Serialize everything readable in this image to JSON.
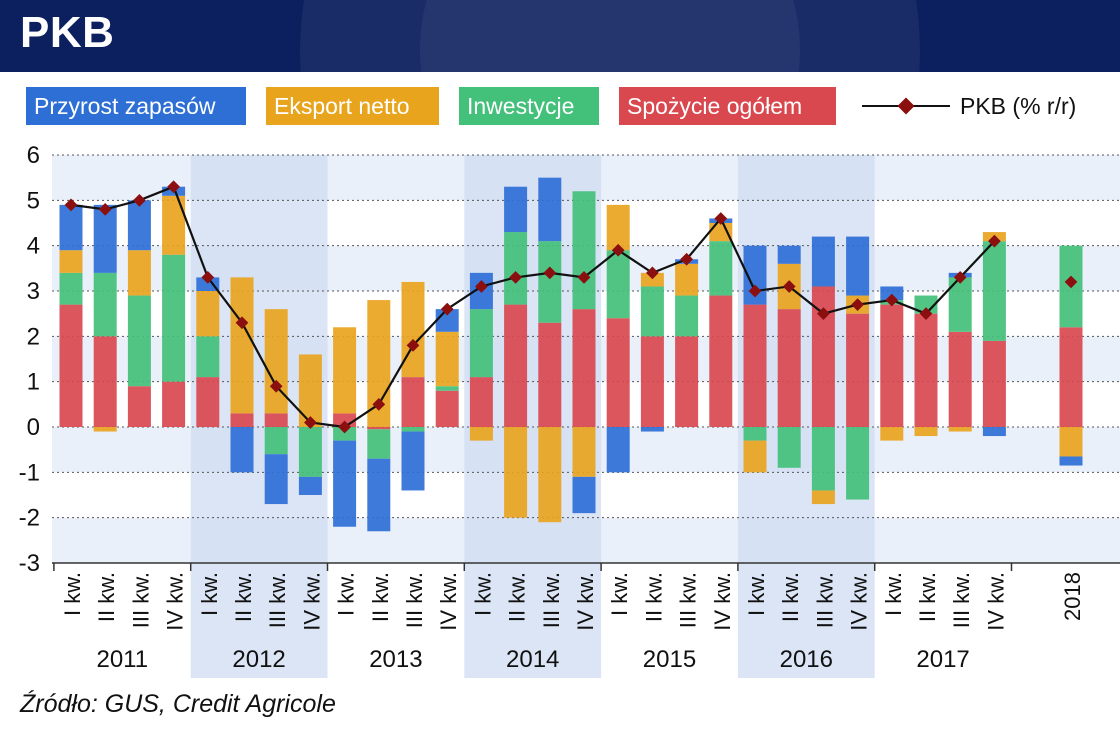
{
  "header": {
    "title": "PKB",
    "bg_color": "#0c1f5e"
  },
  "source": "Źródło: GUS, Credit Agricole",
  "legend": {
    "items": [
      {
        "key": "przyrost",
        "label": "Przyrost zapasów",
        "color": "#2e6fd6"
      },
      {
        "key": "eksport",
        "label": "Eksport netto",
        "color": "#e9a41e"
      },
      {
        "key": "inwestycje",
        "label": "Inwestycje",
        "color": "#43c07a"
      },
      {
        "key": "spozycie",
        "label": "Spożycie ogółem",
        "color": "#d9484f"
      }
    ],
    "line_label": "PKB (% r/r)"
  },
  "chart_data": {
    "type": "bar",
    "stacked": true,
    "y_axis": {
      "min": -3,
      "max": 6,
      "ticks": [
        "-3",
        "-2",
        "-1",
        "0",
        "1",
        "2",
        "3",
        "4",
        "5",
        "6"
      ]
    },
    "grid": true,
    "categories": [
      "I kw.",
      "II kw.",
      "III kw.",
      "IV kw.",
      "I kw.",
      "II kw.",
      "III kw.",
      "IV kw.",
      "I kw.",
      "II kw.",
      "III kw.",
      "IV kw.",
      "I kw.",
      "II kw.",
      "III kw.",
      "IV kw.",
      "I kw.",
      "II kw.",
      "III kw.",
      "IV kw.",
      "I kw.",
      "II kw.",
      "III kw.",
      "IV kw.",
      "I kw.",
      "II kw.",
      "III kw.",
      "IV kw.",
      "2018"
    ],
    "year_groups": [
      {
        "label": "2011",
        "shaded": false
      },
      {
        "label": "2012",
        "shaded": true
      },
      {
        "label": "2013",
        "shaded": false
      },
      {
        "label": "2014",
        "shaded": true
      },
      {
        "label": "2015",
        "shaded": false
      },
      {
        "label": "2016",
        "shaded": true
      },
      {
        "label": "2017",
        "shaded": false
      }
    ],
    "series": [
      {
        "name": "Spożycie ogółem",
        "color": "#d9484f",
        "values": [
          2.7,
          2.0,
          0.9,
          1.0,
          1.1,
          0.3,
          0.3,
          0.0,
          0.3,
          -0.05,
          1.1,
          0.8,
          1.1,
          2.7,
          2.3,
          2.6,
          2.4,
          2.0,
          2.0,
          2.9,
          2.7,
          2.6,
          3.1,
          2.5,
          2.7,
          2.5,
          2.1,
          1.9,
          2.2
        ]
      },
      {
        "name": "Inwestycje",
        "color": "#43c07a",
        "values": [
          0.7,
          1.4,
          2.0,
          2.8,
          0.9,
          0.0,
          -0.6,
          -1.1,
          -0.3,
          -0.65,
          -0.1,
          0.1,
          1.5,
          1.6,
          1.8,
          2.6,
          1.5,
          1.1,
          0.9,
          1.2,
          -0.3,
          -0.9,
          -1.4,
          -1.6,
          0.1,
          0.4,
          1.2,
          2.2,
          1.8
        ]
      },
      {
        "name": "Eksport netto",
        "color": "#e9a41e",
        "values": [
          0.5,
          -0.1,
          1.0,
          1.3,
          1.0,
          3.0,
          2.3,
          1.6,
          1.9,
          2.8,
          2.1,
          1.2,
          -0.3,
          -2.0,
          -2.1,
          -1.1,
          1.0,
          0.3,
          0.7,
          0.4,
          -0.7,
          1.0,
          -0.3,
          0.4,
          -0.3,
          -0.2,
          -0.1,
          0.2,
          -0.65
        ]
      },
      {
        "name": "Przyrost zapasów",
        "color": "#2e6fd6",
        "values": [
          1.0,
          1.5,
          1.1,
          0.2,
          0.3,
          -1.0,
          -1.1,
          -0.4,
          -1.9,
          -1.6,
          -1.3,
          0.5,
          0.8,
          1.0,
          1.4,
          -0.8,
          -1.0,
          -0.1,
          0.1,
          0.1,
          1.3,
          0.4,
          1.1,
          1.3,
          0.3,
          0.0,
          0.1,
          -0.2,
          -0.2
        ]
      }
    ],
    "line": {
      "name": "PKB (% r/r)",
      "color": "#111111",
      "marker_color": "#8b0f0f",
      "values": [
        4.9,
        4.8,
        5.0,
        5.3,
        3.3,
        2.3,
        0.9,
        0.1,
        0.0,
        0.5,
        1.8,
        2.6,
        3.1,
        3.3,
        3.4,
        3.3,
        3.9,
        3.4,
        3.7,
        4.6,
        3.0,
        3.1,
        2.5,
        2.7,
        2.8,
        2.5,
        3.3,
        4.1,
        3.2
      ]
    }
  }
}
